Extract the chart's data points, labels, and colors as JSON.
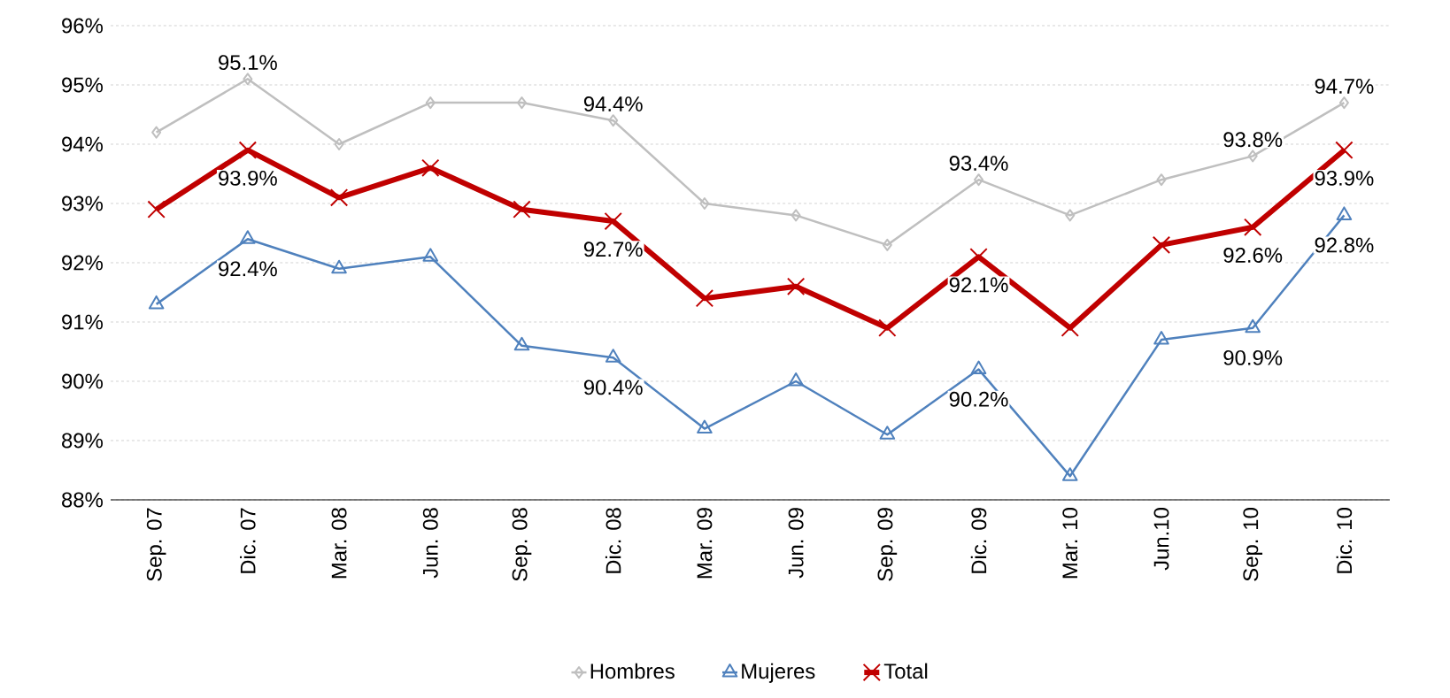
{
  "chart_data": {
    "type": "line",
    "categories": [
      "Sep. 07",
      "Dic. 07",
      "Mar. 08",
      "Jun. 08",
      "Sep. 08",
      "Dic. 08",
      "Mar. 09",
      "Jun. 09",
      "Sep. 09",
      "Dic. 09",
      "Mar. 10",
      "Jun.10",
      "Sep. 10",
      "Dic. 10"
    ],
    "series": [
      {
        "name": "Hombres",
        "color": "#bfbfbf",
        "marker": "diamond",
        "values": [
          94.2,
          95.1,
          94.0,
          94.7,
          94.7,
          94.4,
          93.0,
          92.8,
          92.3,
          93.4,
          92.8,
          93.4,
          93.8,
          94.7
        ],
        "value_labels": [
          null,
          "95.1%",
          null,
          null,
          null,
          "94.4%",
          null,
          null,
          null,
          "93.4%",
          null,
          null,
          "93.8%",
          "94.7%"
        ]
      },
      {
        "name": "Mujeres",
        "color": "#4f81bd",
        "marker": "triangle",
        "values": [
          91.3,
          92.4,
          91.9,
          92.1,
          90.6,
          90.4,
          89.2,
          90.0,
          89.1,
          90.2,
          88.4,
          90.7,
          90.9,
          92.8
        ],
        "value_labels": [
          null,
          "92.4%",
          null,
          null,
          null,
          "90.4%",
          null,
          null,
          null,
          "90.2%",
          null,
          null,
          "90.9%",
          "92.8%"
        ]
      },
      {
        "name": "Total",
        "color": "#c00000",
        "marker": "cross",
        "values": [
          92.9,
          93.9,
          93.1,
          93.6,
          92.9,
          92.7,
          91.4,
          91.6,
          90.9,
          92.1,
          90.9,
          92.3,
          92.6,
          93.9
        ],
        "value_labels": [
          null,
          "93.9%",
          null,
          null,
          null,
          "92.7%",
          null,
          null,
          null,
          "92.1%",
          null,
          null,
          "92.6%",
          "93.9%"
        ]
      }
    ],
    "ylim": [
      88,
      96
    ],
    "yticks": [
      {
        "value": 88,
        "label": "88%"
      },
      {
        "value": 89,
        "label": "89%"
      },
      {
        "value": 90,
        "label": "90%"
      },
      {
        "value": 91,
        "label": "91%"
      },
      {
        "value": 92,
        "label": "92%"
      },
      {
        "value": 93,
        "label": "93%"
      },
      {
        "value": 94,
        "label": "94%"
      },
      {
        "value": 95,
        "label": "95%"
      },
      {
        "value": 96,
        "label": "96%"
      }
    ],
    "grid": "y",
    "legend": "bottom",
    "line_style": "solid"
  }
}
